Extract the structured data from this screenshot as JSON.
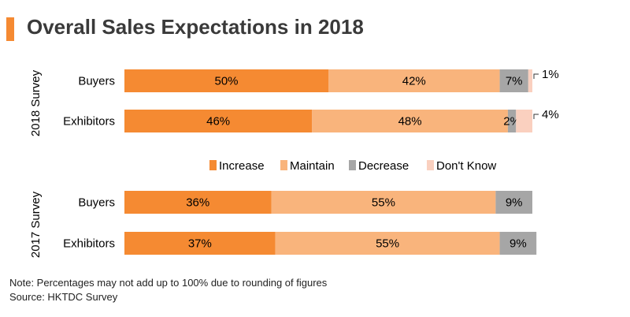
{
  "title": "Overall Sales Expectations in 2018",
  "colors": {
    "accent": "#f58a32",
    "increase": "#f58a32",
    "maintain": "#f9b47c",
    "decrease": "#a6a6a6",
    "dont_know": "#fad0bf"
  },
  "chart_data": {
    "type": "bar",
    "orientation": "horizontal",
    "stacked": true,
    "title": "Overall Sales Expectations in 2018",
    "xlim": [
      0,
      100
    ],
    "grid": false,
    "legend_position": "between-groups",
    "legend": [
      "Increase",
      "Maintain",
      "Decrease",
      "Don't Know"
    ],
    "groups": [
      {
        "label": "2018 Survey",
        "rows": [
          {
            "category": "Buyers",
            "values": [
              50,
              42,
              7,
              1
            ],
            "labels": [
              "50%",
              "42%",
              "7%",
              "1%"
            ]
          },
          {
            "category": "Exhibitors",
            "values": [
              46,
              48,
              2,
              4
            ],
            "labels": [
              "46%",
              "48%",
              "2%",
              "4%"
            ]
          }
        ]
      },
      {
        "label": "2017 Survey",
        "rows": [
          {
            "category": "Buyers",
            "values": [
              36,
              55,
              9
            ],
            "labels": [
              "36%",
              "55%",
              "9%"
            ]
          },
          {
            "category": "Exhibitors",
            "values": [
              37,
              55,
              9
            ],
            "labels": [
              "37%",
              "55%",
              "9%"
            ]
          }
        ]
      }
    ]
  },
  "notes": {
    "note": "Note: Percentages may not add up to 100% due to rounding of figures",
    "source": "Source: HKTDC Survey"
  }
}
